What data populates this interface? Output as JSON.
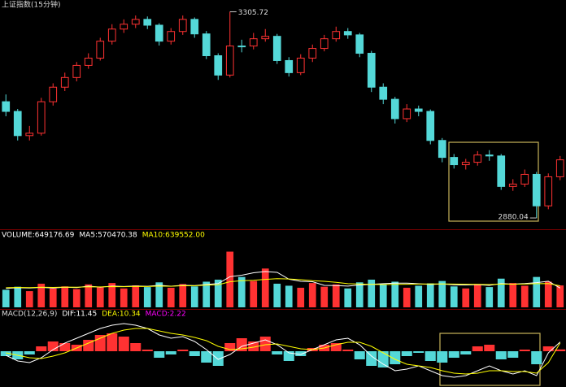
{
  "chart_data": [
    {
      "type": "candlestick",
      "title": "上证指数(15分钟)",
      "up_color": "#ff3232",
      "down_color": "#54d8d8",
      "open": [
        3120,
        3100,
        3050,
        3055,
        3120,
        3150,
        3170,
        3195,
        3210,
        3245,
        3270,
        3280,
        3290,
        3278,
        3245,
        3265,
        3290,
        3260,
        3215,
        3175,
        3235,
        3235,
        3250,
        3255,
        3205,
        3180,
        3210,
        3230,
        3250,
        3265,
        3258,
        3220,
        3150,
        3125,
        3085,
        3105,
        3100,
        3040,
        3005,
        2990,
        2995,
        3010,
        3008,
        2945,
        2950,
        2970,
        2905,
        2965
      ],
      "high": [
        3135,
        3105,
        3070,
        3128,
        3158,
        3180,
        3202,
        3220,
        3252,
        3280,
        3290,
        3298,
        3296,
        3282,
        3272,
        3298,
        3294,
        3266,
        3220,
        3305.72,
        3248,
        3262,
        3270,
        3260,
        3212,
        3218,
        3238,
        3258,
        3275,
        3272,
        3262,
        3225,
        3158,
        3130,
        3115,
        3112,
        3104,
        3045,
        3012,
        3002,
        3018,
        3020,
        3012,
        2960,
        2980,
        2975,
        2972,
        3008
      ],
      "low": [
        3090,
        3040,
        3040,
        3050,
        3112,
        3142,
        3162,
        3188,
        3205,
        3238,
        3262,
        3272,
        3270,
        3236,
        3238,
        3258,
        3252,
        3208,
        3165,
        3170,
        3222,
        3228,
        3244,
        3198,
        3172,
        3175,
        3202,
        3224,
        3244,
        3250,
        3212,
        3140,
        3115,
        3075,
        3078,
        3090,
        3032,
        2995,
        2982,
        2980,
        2988,
        2998,
        2938,
        2936,
        2944,
        2880.04,
        2898,
        2958
      ],
      "close": [
        3100,
        3050,
        3055,
        3120,
        3150,
        3170,
        3195,
        3210,
        3245,
        3270,
        3280,
        3290,
        3278,
        3245,
        3265,
        3290,
        3260,
        3215,
        3175,
        3235,
        3235,
        3250,
        3255,
        3205,
        3180,
        3210,
        3230,
        3250,
        3265,
        3258,
        3220,
        3150,
        3125,
        3085,
        3105,
        3100,
        3040,
        3005,
        2990,
        2995,
        3010,
        3008,
        2945,
        2950,
        2970,
        2905,
        2965,
        3000
      ],
      "ylim": [
        2860,
        3330
      ]
    },
    {
      "type": "volume",
      "ylim": [
        0,
        2000000
      ],
      "series": [
        {
          "name": "VOLUME:649176.69",
          "color": "#ffffff",
          "type": "bar",
          "values": [
            520000,
            610000,
            480000,
            700000,
            560000,
            620000,
            540000,
            680000,
            590000,
            720000,
            560000,
            650000,
            600000,
            740000,
            580000,
            690000,
            620000,
            760000,
            820000,
            1650000,
            900000,
            780000,
            1150000,
            700000,
            640000,
            580000,
            720000,
            610000,
            680000,
            560000,
            740000,
            820000,
            690000,
            760000,
            580000,
            640000,
            710000,
            780000,
            620000,
            560000,
            690000,
            600000,
            850000,
            720000,
            640000,
            900000,
            760000,
            649176.69
          ]
        },
        {
          "name": "MA5:570470.38",
          "color": "#ffffff",
          "type": "line",
          "values": [
            560000,
            580000,
            570000,
            590000,
            574000,
            596000,
            584000,
            628000,
            598000,
            630000,
            618000,
            632000,
            624000,
            654000,
            626000,
            652000,
            646000,
            678000,
            704000,
            908000,
            952000,
            1024000,
            1060000,
            1036000,
            834000,
            770000,
            758000,
            650000,
            646000,
            630000,
            662000,
            682000,
            700000,
            718000,
            718000,
            698000,
            676000,
            694000,
            666000,
            662000,
            672000,
            650000,
            704000,
            686000,
            704000,
            732000,
            774000,
            570470.38
          ]
        },
        {
          "name": "MA10:639552.00",
          "color": "#ffff00",
          "type": "line",
          "values": [
            580000,
            590000,
            585000,
            595000,
            590000,
            600000,
            598000,
            610000,
            605000,
            615000,
            612000,
            620000,
            618000,
            630000,
            625000,
            640000,
            638000,
            660000,
            670000,
            760000,
            790000,
            800000,
            830000,
            850000,
            840000,
            820000,
            790000,
            770000,
            740000,
            700000,
            690000,
            680000,
            675000,
            680000,
            685000,
            690000,
            692000,
            695000,
            690000,
            685000,
            680000,
            675000,
            690000,
            685000,
            690000,
            700000,
            705000,
            639552
          ]
        }
      ]
    },
    {
      "type": "macd",
      "title": "MACD(12,26,9)",
      "ylim": [
        -40,
        40
      ],
      "series": [
        {
          "name": "DIF:11.45",
          "color": "#ffffff",
          "type": "line",
          "values": [
            -5,
            -12,
            -14,
            -8,
            2,
            10,
            16,
            22,
            28,
            32,
            34,
            32,
            28,
            20,
            16,
            18,
            12,
            2,
            -10,
            -4,
            6,
            10,
            14,
            8,
            -2,
            -4,
            2,
            8,
            14,
            16,
            8,
            -6,
            -16,
            -24,
            -22,
            -18,
            -24,
            -30,
            -32,
            -30,
            -24,
            -18,
            -24,
            -28,
            -24,
            -30,
            -2,
            11.45
          ]
        },
        {
          "name": "DEA:10.34",
          "color": "#ffff00",
          "type": "line",
          "values": [
            -2,
            -5,
            -8,
            -9,
            -6,
            -2,
            4,
            10,
            16,
            22,
            26,
            28,
            28,
            25,
            22,
            20,
            17,
            13,
            6,
            2,
            3,
            5,
            8,
            9,
            6,
            3,
            2,
            4,
            8,
            11,
            11,
            6,
            -2,
            -10,
            -16,
            -18,
            -20,
            -24,
            -27,
            -28,
            -27,
            -24,
            -24,
            -25,
            -25,
            -27,
            -14,
            10.34
          ]
        },
        {
          "name": "MACD:2.22",
          "color": "#ff00ff",
          "type": "bar",
          "values": [
            -6,
            -10,
            -4,
            6,
            12,
            10,
            8,
            14,
            20,
            22,
            18,
            10,
            2,
            -8,
            -4,
            2,
            -6,
            -14,
            -18,
            10,
            16,
            12,
            18,
            -4,
            -12,
            -6,
            4,
            8,
            10,
            2,
            -10,
            -18,
            -20,
            -16,
            -6,
            -2,
            -12,
            -14,
            -8,
            -4,
            6,
            8,
            -10,
            -8,
            2,
            -16,
            6,
            2.22
          ]
        }
      ]
    }
  ]
}
